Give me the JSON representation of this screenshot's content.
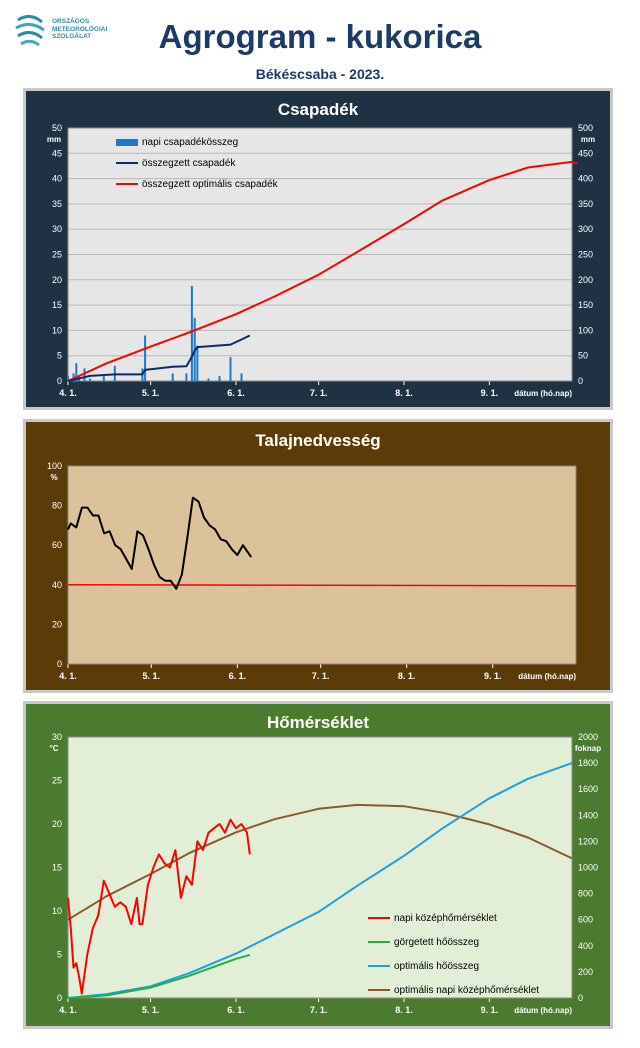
{
  "header": {
    "logo_lines": [
      "ORSZÁGOS",
      "METEOROLÓGIAI",
      "SZOLGÁLAT"
    ],
    "title": "Agrogram - kukorica",
    "subtitle": "Békéscsaba - 2023."
  },
  "x_ticks": [
    "4. 1.",
    "5. 1.",
    "6. 1.",
    "7. 1.",
    "8. 1.",
    "9. 1."
  ],
  "x_axis_label": "dátum (hó.nap)",
  "colors": {
    "precip_bars": "#1f78c8",
    "precip_cumulative": "#0b2a6b",
    "optimal_precip": "#ff0000",
    "soil_moisture": "#000000",
    "soil_threshold": "#ff0000",
    "daily_mean_temp": "#ff0000",
    "rolling_heat_sum": "#22b040",
    "optimal_heat_sum": "#1aa0e6",
    "optimal_daily_mean_temp": "#8b5a2b"
  },
  "chart_data": [
    {
      "type": "bar+line",
      "title": "Csapadék",
      "ylabel": "mm",
      "y2label": "mm",
      "ylim": [
        0,
        50
      ],
      "y2lim": [
        0,
        500
      ],
      "xlabel": "dátum (hó.nap)",
      "legend": "top-left",
      "series": [
        {
          "name": "napi csapadékösszeg",
          "kind": "bar",
          "axis": "left",
          "x": [
            "2023-04-01",
            "2023-04-03",
            "2023-04-04",
            "2023-04-05",
            "2023-04-07",
            "2023-04-09",
            "2023-04-14",
            "2023-04-18",
            "2023-04-28",
            "2023-04-29",
            "2023-05-09",
            "2023-05-14",
            "2023-05-16",
            "2023-05-17",
            "2023-05-18",
            "2023-05-22",
            "2023-05-26",
            "2023-05-30",
            "2023-06-03"
          ],
          "values": [
            1.0,
            1.5,
            3.5,
            1.0,
            2.5,
            0.5,
            1.0,
            3.0,
            2.5,
            9.0,
            1.5,
            1.5,
            18.8,
            12.5,
            7.0,
            0.5,
            1.0,
            4.7,
            1.5
          ]
        },
        {
          "name": "összegzett csapadék",
          "kind": "line",
          "axis": "right",
          "x": [
            "2023-04-01",
            "2023-04-05",
            "2023-04-09",
            "2023-04-18",
            "2023-04-28",
            "2023-04-29",
            "2023-05-09",
            "2023-05-14",
            "2023-05-16",
            "2023-05-17",
            "2023-05-18",
            "2023-05-30",
            "2023-06-03",
            "2023-06-06"
          ],
          "values": [
            0,
            5,
            10,
            13,
            13,
            22,
            28,
            29,
            48,
            60,
            67,
            72,
            82,
            90
          ]
        },
        {
          "name": "összegzett optimális  csapadék",
          "kind": "line",
          "axis": "right",
          "x": [
            "2023-04-01",
            "2023-04-15",
            "2023-05-01",
            "2023-05-15",
            "2023-06-01",
            "2023-06-15",
            "2023-07-01",
            "2023-07-15",
            "2023-08-01",
            "2023-08-15",
            "2023-09-01",
            "2023-09-15",
            "2023-10-01",
            "2023-10-03"
          ],
          "values": [
            0,
            35,
            68,
            96,
            132,
            167,
            210,
            255,
            310,
            357,
            397,
            422,
            433,
            430
          ]
        }
      ],
      "y_ticks": [
        "0",
        "5",
        "10",
        "15",
        "20",
        "25",
        "30",
        "35",
        "40",
        "45",
        "50"
      ],
      "y2_ticks": [
        "0",
        "50",
        "100",
        "150",
        "200",
        "250",
        "300",
        "350",
        "400",
        "450",
        "500"
      ]
    },
    {
      "type": "line",
      "title": "Talajnedvesség",
      "ylabel": "%",
      "ylim": [
        0,
        100
      ],
      "xlabel": "dátum (hó.nap)",
      "series": [
        {
          "kind": "line",
          "x": [
            "2023-04-01",
            "2023-04-02",
            "2023-04-04",
            "2023-04-06",
            "2023-04-08",
            "2023-04-10",
            "2023-04-12",
            "2023-04-14",
            "2023-04-16",
            "2023-04-18",
            "2023-04-20",
            "2023-04-22",
            "2023-04-24",
            "2023-04-26",
            "2023-04-28",
            "2023-04-30",
            "2023-05-02",
            "2023-05-04",
            "2023-05-06",
            "2023-05-08",
            "2023-05-10",
            "2023-05-12",
            "2023-05-14",
            "2023-05-16",
            "2023-05-18",
            "2023-05-20",
            "2023-05-22",
            "2023-05-24",
            "2023-05-26",
            "2023-05-28",
            "2023-05-30",
            "2023-06-01",
            "2023-06-03",
            "2023-06-04",
            "2023-06-06"
          ],
          "values": [
            68,
            71,
            69,
            79,
            79,
            75,
            75,
            66,
            67,
            60,
            58,
            53,
            48,
            67,
            65,
            58,
            50,
            44,
            42,
            42,
            38,
            45,
            64,
            84,
            82,
            74,
            70,
            68,
            63,
            62,
            58,
            55,
            60,
            58,
            54
          ]
        },
        {
          "kind": "line",
          "x": [
            "2023-04-01",
            "2023-10-01"
          ],
          "values": [
            40,
            39.5
          ]
        }
      ],
      "y_ticks": [
        "0",
        "20",
        "40",
        "60",
        "80",
        "100"
      ]
    },
    {
      "type": "line",
      "title": "Hőmérséklet",
      "ylabel": "°C",
      "y2label": "foknap",
      "ylim": [
        0,
        30
      ],
      "y2lim": [
        0,
        2000
      ],
      "xlabel": "dátum (hó.nap)",
      "legend": "bottom-right",
      "series": [
        {
          "name": "napi középhőmérséklet",
          "kind": "line",
          "axis": "left",
          "x": [
            "2023-04-01",
            "2023-04-02",
            "2023-04-03",
            "2023-04-04",
            "2023-04-05",
            "2023-04-06",
            "2023-04-08",
            "2023-04-10",
            "2023-04-12",
            "2023-04-14",
            "2023-04-16",
            "2023-04-18",
            "2023-04-20",
            "2023-04-22",
            "2023-04-24",
            "2023-04-26",
            "2023-04-27",
            "2023-04-28",
            "2023-04-30",
            "2023-05-02",
            "2023-05-04",
            "2023-05-06",
            "2023-05-08",
            "2023-05-10",
            "2023-05-12",
            "2023-05-14",
            "2023-05-16",
            "2023-05-18",
            "2023-05-20",
            "2023-05-22",
            "2023-05-24",
            "2023-05-26",
            "2023-05-28",
            "2023-05-30",
            "2023-06-01",
            "2023-06-03",
            "2023-06-05",
            "2023-06-06"
          ],
          "values": [
            11.5,
            8.0,
            3.5,
            4.0,
            2.5,
            0.5,
            5.0,
            8.0,
            9.5,
            13.5,
            12.0,
            10.5,
            11.0,
            10.5,
            8.5,
            11.5,
            8.5,
            8.5,
            13.0,
            15.0,
            16.5,
            15.5,
            15.0,
            17.0,
            11.5,
            14.0,
            13.0,
            18.0,
            17.0,
            19.0,
            19.5,
            20.0,
            19.0,
            20.5,
            19.5,
            20.0,
            19.0,
            16.5
          ]
        },
        {
          "name": "görgetett hőösszeg",
          "kind": "line",
          "axis": "right",
          "x": [
            "2023-04-01",
            "2023-04-15",
            "2023-05-01",
            "2023-05-15",
            "2023-06-01",
            "2023-06-06"
          ],
          "values": [
            0,
            20,
            80,
            170,
            300,
            330
          ]
        },
        {
          "name": "optimális hőösszeg",
          "kind": "line",
          "axis": "right",
          "x": [
            "2023-04-01",
            "2023-04-15",
            "2023-05-01",
            "2023-05-15",
            "2023-06-01",
            "2023-06-15",
            "2023-07-01",
            "2023-07-15",
            "2023-08-01",
            "2023-08-15",
            "2023-09-01",
            "2023-09-15",
            "2023-10-01"
          ],
          "values": [
            0,
            30,
            90,
            190,
            340,
            490,
            660,
            860,
            1090,
            1300,
            1530,
            1680,
            1800
          ]
        },
        {
          "name": "optimális napi középhőmérséklet",
          "kind": "line",
          "axis": "right",
          "x": [
            "2023-04-01",
            "2023-04-15",
            "2023-05-01",
            "2023-05-15",
            "2023-06-01",
            "2023-06-15",
            "2023-07-01",
            "2023-07-15",
            "2023-08-01",
            "2023-08-15",
            "2023-09-01",
            "2023-09-15",
            "2023-10-01"
          ],
          "values": [
            600,
            780,
            950,
            1110,
            1270,
            1370,
            1450,
            1480,
            1470,
            1420,
            1330,
            1230,
            1070
          ]
        }
      ],
      "y_ticks": [
        "0",
        "5",
        "10",
        "15",
        "20",
        "25",
        "30"
      ],
      "y2_ticks": [
        "0",
        "200",
        "400",
        "600",
        "800",
        "1000",
        "1200",
        "1400",
        "1600",
        "1800",
        "2000"
      ]
    }
  ]
}
